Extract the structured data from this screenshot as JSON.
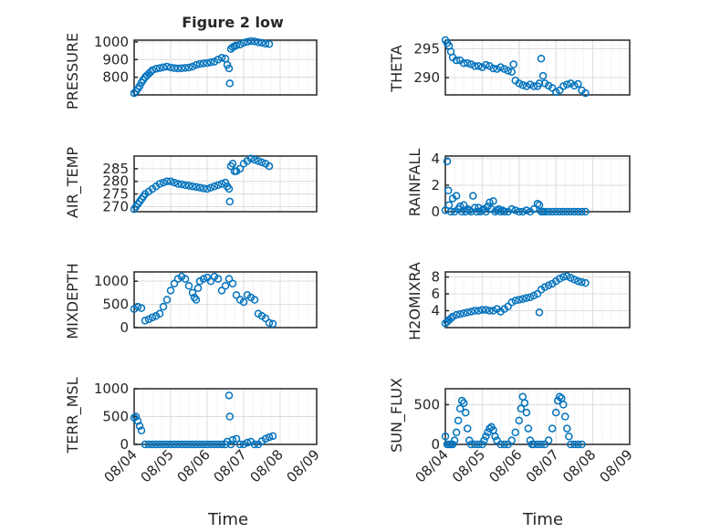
{
  "figure": {
    "title": "Figure 2 low",
    "marker_color": "#0072BD"
  },
  "x_tick_labels": [
    "08/04",
    "08/05",
    "08/06",
    "08/07",
    "08/08",
    "08/09"
  ],
  "chart_data": [
    {
      "id": "pressure",
      "type": "scatter",
      "ylabel": "PRESSURE",
      "xlabel": "",
      "title": "Figure 2 low",
      "ylim": [
        700,
        1010
      ],
      "yticks": [
        800,
        900,
        1000
      ],
      "x_label_days": [
        0,
        1,
        2,
        3,
        4,
        5
      ],
      "xlim": [
        0,
        5
      ],
      "grid": "on",
      "x": [
        0,
        0.05,
        0.1,
        0.15,
        0.2,
        0.25,
        0.3,
        0.35,
        0.4,
        0.45,
        0.5,
        0.6,
        0.7,
        0.8,
        0.9,
        1.0,
        1.1,
        1.2,
        1.3,
        1.4,
        1.5,
        1.6,
        1.7,
        1.8,
        1.9,
        2.0,
        2.1,
        2.2,
        2.3,
        2.4,
        2.5,
        2.55,
        2.6,
        2.62,
        2.65,
        2.7,
        2.75,
        2.8,
        2.9,
        3.0,
        3.1,
        3.2,
        3.3,
        3.4,
        3.5,
        3.6,
        3.7
      ],
      "y": [
        710,
        720,
        735,
        750,
        770,
        785,
        800,
        810,
        820,
        830,
        840,
        848,
        852,
        856,
        860,
        855,
        852,
        850,
        851,
        853,
        855,
        860,
        870,
        875,
        878,
        880,
        885,
        888,
        900,
        910,
        905,
        870,
        850,
        765,
        960,
        970,
        975,
        980,
        985,
        995,
        1000,
        1005,
        1003,
        998,
        995,
        990,
        988
      ]
    },
    {
      "id": "theta",
      "type": "scatter",
      "ylabel": "THETA",
      "xlabel": "",
      "ylim": [
        287,
        296.5
      ],
      "yticks": [
        290,
        295
      ],
      "x_label_days": [
        0,
        1,
        2,
        3,
        4,
        5
      ],
      "xlim": [
        0,
        5
      ],
      "grid": "on",
      "x": [
        0,
        0.05,
        0.1,
        0.15,
        0.2,
        0.3,
        0.4,
        0.5,
        0.6,
        0.7,
        0.8,
        0.9,
        1.0,
        1.1,
        1.2,
        1.3,
        1.4,
        1.5,
        1.6,
        1.7,
        1.8,
        1.85,
        1.9,
        2.0,
        2.1,
        2.2,
        2.3,
        2.4,
        2.5,
        2.55,
        2.6,
        2.65,
        2.7,
        2.8,
        2.9,
        3.0,
        3.1,
        3.2,
        3.3,
        3.4,
        3.5,
        3.6,
        3.7,
        3.8
      ],
      "y": [
        296.5,
        296.0,
        295.5,
        294.5,
        293.5,
        293.0,
        293.0,
        292.5,
        292.5,
        292.3,
        292.0,
        292.0,
        291.8,
        292.2,
        292.0,
        291.6,
        291.5,
        291.8,
        291.5,
        291.2,
        291.0,
        292.3,
        289.5,
        289.0,
        288.7,
        288.5,
        288.8,
        288.5,
        288.5,
        289.0,
        293.3,
        290.3,
        289.0,
        288.6,
        288.2,
        287.5,
        287.8,
        288.5,
        288.8,
        289.0,
        288.6,
        288.9,
        287.8,
        287.3
      ]
    },
    {
      "id": "air_temp",
      "type": "scatter",
      "ylabel": "AIR_TEMP",
      "xlabel": "",
      "ylim": [
        268,
        290
      ],
      "yticks": [
        270,
        275,
        280,
        285
      ],
      "x_label_days": [
        0,
        1,
        2,
        3,
        4,
        5
      ],
      "xlim": [
        0,
        5
      ],
      "grid": "on",
      "x": [
        0,
        0.05,
        0.1,
        0.15,
        0.2,
        0.25,
        0.3,
        0.4,
        0.5,
        0.6,
        0.7,
        0.8,
        0.9,
        1.0,
        1.1,
        1.2,
        1.3,
        1.4,
        1.5,
        1.6,
        1.7,
        1.8,
        1.9,
        2.0,
        2.1,
        2.2,
        2.3,
        2.4,
        2.5,
        2.55,
        2.6,
        2.62,
        2.65,
        2.7,
        2.75,
        2.8,
        2.9,
        3.0,
        3.1,
        3.2,
        3.3,
        3.4,
        3.5,
        3.6,
        3.7
      ],
      "y": [
        269,
        270,
        271,
        272,
        273,
        274,
        275,
        276,
        277,
        278,
        279,
        279.5,
        280,
        280,
        279.5,
        279,
        278.8,
        278.5,
        278.3,
        278,
        277.8,
        277.5,
        277.2,
        277,
        277.5,
        278,
        278.5,
        279,
        279.5,
        278,
        277,
        272,
        286,
        287,
        284,
        284,
        285,
        287,
        288,
        289,
        288.5,
        288,
        287.5,
        287,
        286
      ]
    },
    {
      "id": "rainfall",
      "type": "scatter",
      "ylabel": "RAINFALL",
      "xlabel": "",
      "ylim": [
        0,
        4.2
      ],
      "yticks": [
        0,
        2,
        4
      ],
      "x_label_days": [
        0,
        1,
        2,
        3,
        4,
        5
      ],
      "xlim": [
        0,
        5
      ],
      "grid": "on",
      "x": [
        0,
        0.05,
        0.08,
        0.1,
        0.15,
        0.2,
        0.25,
        0.3,
        0.35,
        0.4,
        0.45,
        0.5,
        0.55,
        0.6,
        0.65,
        0.7,
        0.75,
        0.8,
        0.85,
        0.9,
        0.95,
        1.0,
        1.05,
        1.1,
        1.15,
        1.2,
        1.25,
        1.3,
        1.35,
        1.4,
        1.45,
        1.5,
        1.55,
        1.6,
        1.7,
        1.8,
        1.9,
        2.0,
        2.1,
        2.2,
        2.3,
        2.4,
        2.5,
        2.55,
        2.6,
        2.65,
        2.7,
        2.8,
        2.9,
        3.0,
        3.1,
        3.2,
        3.3,
        3.4,
        3.5,
        3.6,
        3.7,
        3.8
      ],
      "y": [
        0.1,
        3.8,
        1.6,
        0.5,
        0,
        1.0,
        0,
        1.2,
        0.2,
        0.4,
        0,
        0.5,
        0,
        0.2,
        0.1,
        0,
        1.2,
        0.3,
        0,
        0.3,
        0,
        0.1,
        0.2,
        0,
        0.4,
        0.7,
        0.2,
        0.8,
        0,
        0.1,
        0.2,
        0,
        0.1,
        0,
        0,
        0.2,
        0.1,
        0,
        0,
        0.1,
        0,
        0.2,
        0.6,
        0.5,
        0,
        0,
        0,
        0,
        0,
        0,
        0,
        0,
        0,
        0,
        0,
        0,
        0,
        0
      ]
    },
    {
      "id": "mixdepth",
      "type": "scatter",
      "ylabel": "MIXDEPTH",
      "xlabel": "",
      "ylim": [
        0,
        1200
      ],
      "yticks": [
        0,
        500,
        1000
      ],
      "x_label_days": [
        0,
        1,
        2,
        3,
        4,
        5
      ],
      "xlim": [
        0,
        5
      ],
      "grid": "on",
      "x": [
        0,
        0.1,
        0.2,
        0.3,
        0.4,
        0.5,
        0.6,
        0.7,
        0.8,
        0.9,
        1.0,
        1.1,
        1.2,
        1.3,
        1.4,
        1.5,
        1.6,
        1.65,
        1.7,
        1.75,
        1.8,
        1.9,
        2.0,
        2.1,
        2.2,
        2.3,
        2.4,
        2.5,
        2.6,
        2.7,
        2.8,
        2.9,
        3.0,
        3.1,
        3.2,
        3.3,
        3.4,
        3.5,
        3.6,
        3.7,
        3.8
      ],
      "y": [
        400,
        450,
        420,
        150,
        180,
        220,
        250,
        300,
        450,
        600,
        800,
        950,
        1050,
        1100,
        1050,
        900,
        750,
        650,
        600,
        850,
        1000,
        1050,
        1080,
        1000,
        1100,
        1050,
        800,
        900,
        1050,
        950,
        700,
        600,
        550,
        700,
        650,
        600,
        300,
        250,
        200,
        100,
        80
      ]
    },
    {
      "id": "h2omixra",
      "type": "scatter",
      "ylabel": "H2OMIXRA",
      "xlabel": "",
      "ylim": [
        2,
        8.6
      ],
      "yticks": [
        4,
        6,
        8
      ],
      "x_label_days": [
        0,
        1,
        2,
        3,
        4,
        5
      ],
      "xlim": [
        0,
        5
      ],
      "grid": "on",
      "x": [
        0,
        0.05,
        0.1,
        0.15,
        0.2,
        0.3,
        0.4,
        0.5,
        0.6,
        0.7,
        0.8,
        0.9,
        1.0,
        1.1,
        1.2,
        1.3,
        1.4,
        1.5,
        1.6,
        1.7,
        1.8,
        1.9,
        2.0,
        2.1,
        2.2,
        2.3,
        2.4,
        2.5,
        2.55,
        2.6,
        2.7,
        2.8,
        2.9,
        3.0,
        3.1,
        3.2,
        3.3,
        3.4,
        3.5,
        3.6,
        3.7,
        3.8
      ],
      "y": [
        2.5,
        2.7,
        2.9,
        3.1,
        3.3,
        3.5,
        3.6,
        3.7,
        3.8,
        3.9,
        4.0,
        4.0,
        4.1,
        4.1,
        4.0,
        4.0,
        4.2,
        3.9,
        4.2,
        4.5,
        5.0,
        5.2,
        5.3,
        5.4,
        5.5,
        5.6,
        5.8,
        6.0,
        3.8,
        6.5,
        6.8,
        7.0,
        7.2,
        7.5,
        7.8,
        8.0,
        8.1,
        7.9,
        7.7,
        7.5,
        7.4,
        7.3
      ]
    },
    {
      "id": "terr_msl",
      "type": "scatter",
      "ylabel": "TERR_MSL",
      "xlabel": "Time",
      "ylim": [
        0,
        1000
      ],
      "yticks": [
        0,
        500,
        1000
      ],
      "x_label_days": [
        0,
        1,
        2,
        3,
        4,
        5
      ],
      "xlim": [
        0,
        5
      ],
      "grid": "on",
      "x": [
        0,
        0.05,
        0.1,
        0.15,
        0.2,
        0.3,
        0.4,
        0.5,
        0.6,
        0.7,
        0.8,
        0.9,
        1.0,
        1.1,
        1.2,
        1.3,
        1.4,
        1.5,
        1.6,
        1.7,
        1.8,
        1.9,
        2.0,
        2.1,
        2.2,
        2.3,
        2.4,
        2.5,
        2.55,
        2.6,
        2.62,
        2.65,
        2.7,
        2.8,
        2.9,
        3.0,
        3.1,
        3.2,
        3.3,
        3.4,
        3.5,
        3.6,
        3.7,
        3.8
      ],
      "y": [
        480,
        500,
        420,
        330,
        250,
        0,
        0,
        0,
        0,
        0,
        0,
        0,
        0,
        0,
        0,
        0,
        0,
        0,
        0,
        0,
        0,
        0,
        0,
        0,
        0,
        0,
        0,
        0,
        50,
        880,
        500,
        0,
        80,
        100,
        0,
        0,
        30,
        50,
        0,
        0,
        60,
        100,
        130,
        150
      ]
    },
    {
      "id": "sun_flux",
      "type": "scatter",
      "ylabel": "SUN_FLUX",
      "xlabel": "Time",
      "ylim": [
        0,
        700
      ],
      "yticks": [
        0,
        500
      ],
      "x_label_days": [
        0,
        1,
        2,
        3,
        4,
        5
      ],
      "xlim": [
        0,
        5
      ],
      "grid": "on",
      "x": [
        0,
        0.05,
        0.1,
        0.15,
        0.2,
        0.25,
        0.3,
        0.35,
        0.4,
        0.45,
        0.5,
        0.55,
        0.6,
        0.65,
        0.7,
        0.8,
        0.9,
        1.0,
        1.05,
        1.1,
        1.15,
        1.2,
        1.25,
        1.3,
        1.35,
        1.4,
        1.5,
        1.6,
        1.7,
        1.8,
        1.9,
        2.0,
        2.05,
        2.1,
        2.15,
        2.2,
        2.25,
        2.3,
        2.35,
        2.4,
        2.5,
        2.6,
        2.7,
        2.8,
        2.9,
        3.0,
        3.05,
        3.1,
        3.15,
        3.2,
        3.25,
        3.3,
        3.35,
        3.4,
        3.5,
        3.6,
        3.7
      ],
      "y": [
        100,
        0,
        0,
        0,
        0,
        50,
        150,
        300,
        450,
        550,
        520,
        400,
        200,
        50,
        0,
        0,
        0,
        0,
        50,
        100,
        150,
        200,
        220,
        180,
        100,
        50,
        0,
        0,
        0,
        50,
        150,
        300,
        450,
        600,
        520,
        400,
        200,
        50,
        0,
        0,
        0,
        0,
        0,
        50,
        200,
        400,
        550,
        600,
        580,
        500,
        350,
        200,
        100,
        0,
        0,
        0,
        0
      ]
    }
  ]
}
